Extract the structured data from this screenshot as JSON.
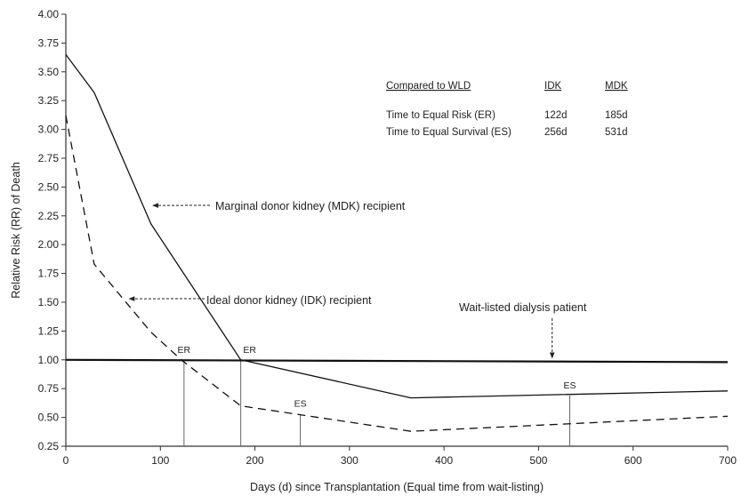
{
  "chart_data": {
    "type": "line",
    "xlabel": "Days (d) since Transplantation (Equal time from wait-listing)",
    "ylabel": "Relative Risk (RR) of Death",
    "xlim": [
      0,
      700
    ],
    "ylim": [
      0.25,
      4.0
    ],
    "x_ticks": [
      "0",
      "100",
      "200",
      "300",
      "400",
      "500",
      "600",
      "700"
    ],
    "y_ticks": [
      "0.25",
      "0.50",
      "0.75",
      "1.00",
      "1.25",
      "1.50",
      "1.75",
      "2.00",
      "2.25",
      "2.50",
      "2.75",
      "3.00",
      "3.25",
      "3.50",
      "3.75",
      "4.00"
    ],
    "grid": false,
    "series": [
      {
        "name": "Marginal donor kidney (MDK) recipient",
        "style": "solid",
        "points": [
          [
            0,
            3.65
          ],
          [
            30,
            3.32
          ],
          [
            90,
            2.18
          ],
          [
            185,
            1.0
          ],
          [
            365,
            0.67
          ],
          [
            700,
            0.73
          ]
        ]
      },
      {
        "name": "Ideal donor kidney (IDK) recipient",
        "style": "dashed",
        "points": [
          [
            0,
            3.12
          ],
          [
            30,
            1.83
          ],
          [
            90,
            1.24
          ],
          [
            122,
            1.0
          ],
          [
            185,
            0.6
          ],
          [
            365,
            0.38
          ],
          [
            700,
            0.51
          ]
        ]
      },
      {
        "name": "Wait-listed dialysis patient",
        "style": "bold",
        "points": [
          [
            0,
            1.0
          ],
          [
            700,
            0.98
          ]
        ]
      }
    ],
    "markers": [
      {
        "label": "ER",
        "x": 125,
        "y_top": 1.0
      },
      {
        "label": "ER",
        "x": 185,
        "y_top": 1.0
      },
      {
        "label": "ES",
        "x": 248,
        "y_top": 0.53
      },
      {
        "label": "ES",
        "x": 533,
        "y_top": 0.69
      }
    ],
    "annotations": [
      {
        "text": "Marginal donor kidney (MDK) recipient",
        "arrow_to": [
          90,
          2.34
        ]
      },
      {
        "text": "Ideal donor kidney (IDK) recipient",
        "arrow_to": [
          65,
          1.53
        ]
      },
      {
        "text": "Wait-listed dialysis patient",
        "arrow_to": [
          505,
          1.0
        ]
      }
    ],
    "table": {
      "headers": [
        "Compared to WLD",
        "IDK",
        "MDK"
      ],
      "rows": [
        [
          "Time to Equal Risk (ER)",
          "122d",
          "185d"
        ],
        [
          "Time to Equal Survival (ES)",
          "256d",
          "531d"
        ]
      ]
    }
  }
}
